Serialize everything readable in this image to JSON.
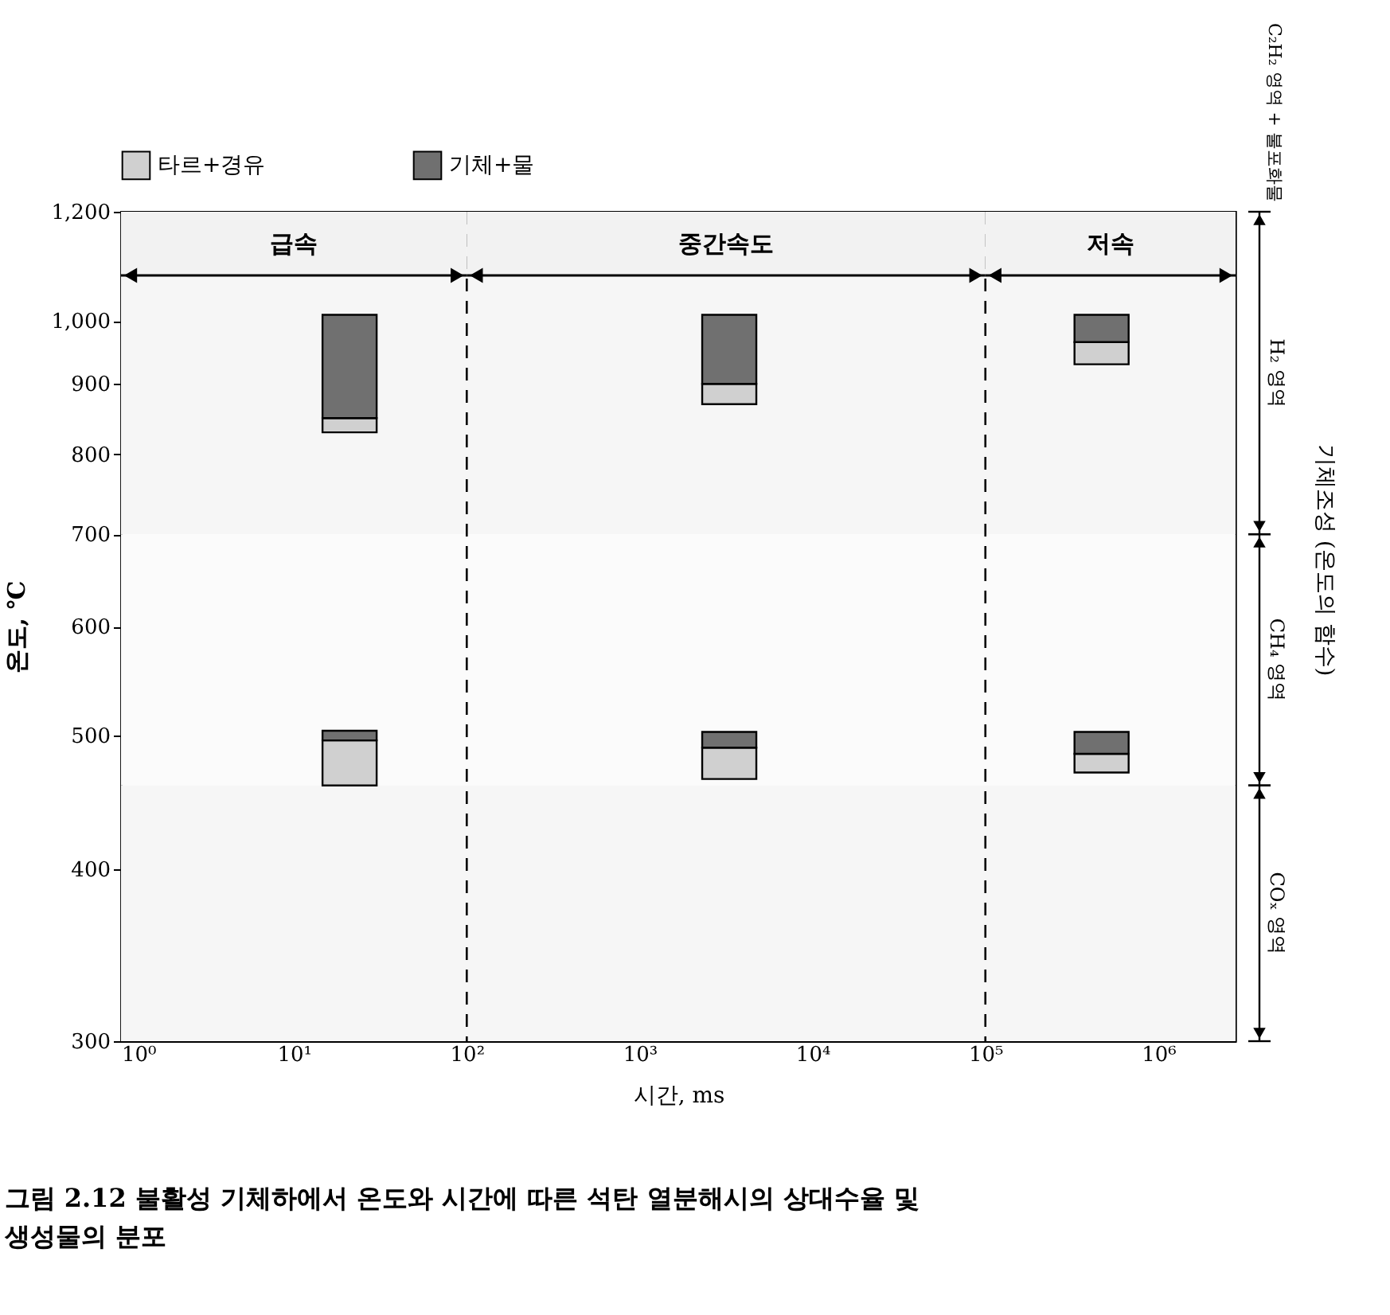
{
  "chart_data": {
    "type": "bar",
    "title": "그림 2.12  불활성 기체하에서 온도와 시간에 따른 석탄 열분해시의 상대수율 및 생성물의 분포",
    "xlabel": "시간, ms",
    "ylabel": "온도, ℃",
    "x": [
      21,
      3300,
      470000
    ],
    "series": [
      {
        "name": "타르+경유",
        "color": "#d0d0d0",
        "base": [
          830,
          870,
          930
        ],
        "values": [
          20,
          30,
          35
        ]
      },
      {
        "name": "기체+물",
        "color": "#707070",
        "base": [
          850,
          900,
          965
        ],
        "values": [
          160,
          110,
          45
        ]
      },
      {
        "color": "#d0d0d0",
        "base": [
          460,
          465,
          470
        ],
        "values": [
          36,
          25,
          15
        ]
      },
      {
        "color": "#707070",
        "base": [
          496,
          490,
          485
        ],
        "values": [
          8,
          13,
          18
        ]
      }
    ],
    "log": "xy",
    "xlim": [
      1,
      2800000
    ],
    "xticks": [
      {
        "value": 1,
        "label": "10⁰"
      },
      {
        "value": 10,
        "label": "10¹"
      },
      {
        "value": 100,
        "label": "10²"
      },
      {
        "value": 1000,
        "label": "10³"
      },
      {
        "value": 10000,
        "label": "10⁴"
      },
      {
        "value": 100000,
        "label": "10⁵"
      },
      {
        "value": 1000000,
        "label": "10⁶"
      }
    ],
    "ylim": [
      300,
      1200
    ],
    "yticks": [
      300,
      400,
      500,
      600,
      700,
      800,
      900,
      {
        "value": 1000,
        "label": "1,000"
      },
      {
        "value": 1200,
        "label": "1,200"
      }
    ],
    "ref_lines": [
      {
        "axis": "x",
        "value": 100,
        "line_style": "dashed"
      },
      {
        "axis": "x",
        "value": 100000,
        "line_style": "dashed"
      }
    ],
    "bands": [
      {
        "axis": "x",
        "from": 1,
        "to": 100,
        "label": "급속",
        "color": "#f2f2f2"
      },
      {
        "axis": "x",
        "from": 100,
        "to": 100000,
        "label": "중간속도",
        "color": "#f2f2f2"
      },
      {
        "axis": "x",
        "from": 100000,
        "to": 2800000,
        "label": "저속",
        "color": "#f2f2f2"
      },
      {
        "axis": "y",
        "from": 700,
        "to": 1200,
        "label": "H₂ 영역",
        "color": "#f6f6f6"
      },
      {
        "axis": "y",
        "from": 460,
        "to": 700,
        "label": "CH₄ 영역",
        "color": "#fbfbfb"
      },
      {
        "axis": "y",
        "from": 300,
        "to": 460,
        "label": "COₓ 영역",
        "color": "#f6f6f6"
      }
    ],
    "annotations": [
      "C₂H₂ 영역 + 불포화물",
      "기체조성 (온도의 함수)"
    ],
    "legend": "top"
  }
}
